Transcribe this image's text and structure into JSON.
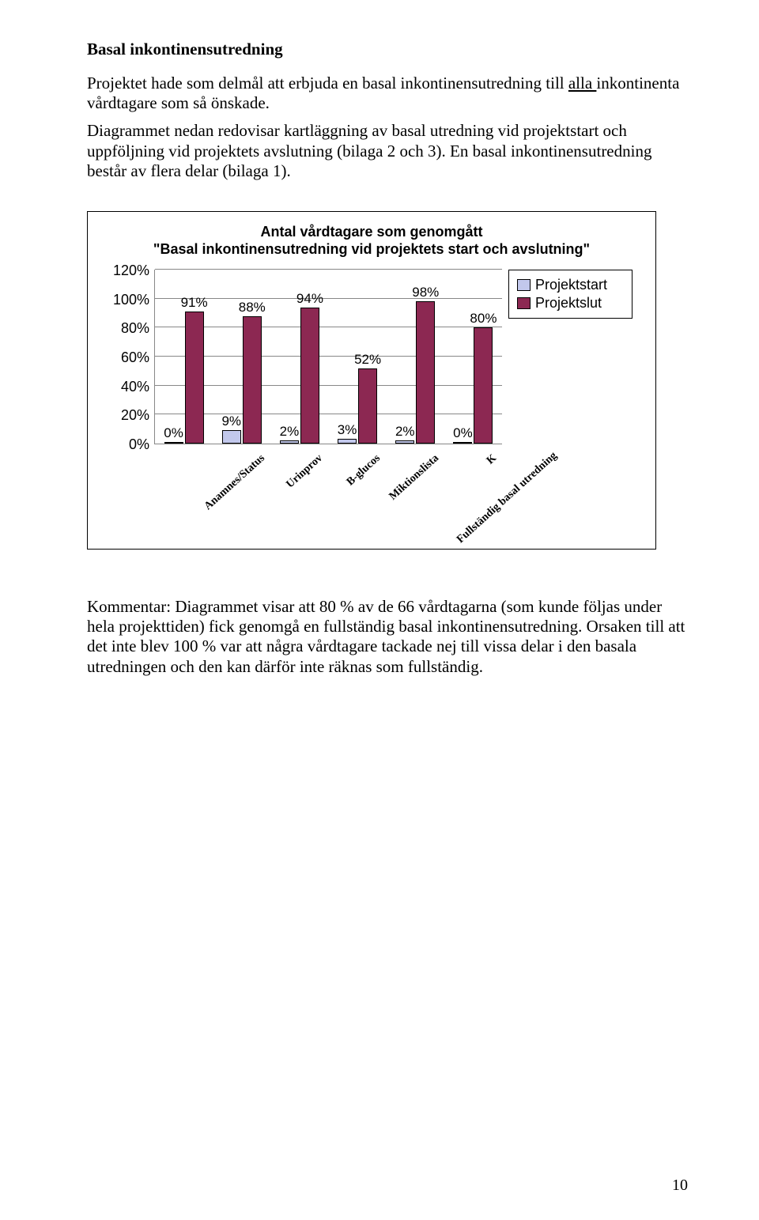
{
  "heading": "Basal inkontinensutredning",
  "para1_a": "Projektet hade som delmål att erbjuda en basal inkontinensutredning till ",
  "para1_u": "alla ",
  "para1_b": "inkontinenta vårdtagare som så önskade.",
  "para2": "Diagrammet nedan redovisar kartläggning av basal utredning vid projektstart och uppföljning vid projektets avslutning (bilaga 2 och 3). En basal inkontinensutredning består av flera delar (bilaga 1).",
  "chart": {
    "title_line1": "Antal vårdtagare som genomgått",
    "title_line2": "\"Basal inkontinensutredning vid projektets start och avslutning\"",
    "ymax": 120,
    "ytick_step": 20,
    "ytick_labels": [
      "120%",
      "100%",
      "80%",
      "60%",
      "40%",
      "20%",
      "0%"
    ],
    "categories": [
      "Anamnes/Status",
      "Urinprov",
      "B-glucos",
      "Miktionslista",
      "K",
      "Fullständig basal utredning"
    ],
    "series": [
      {
        "name": "Projektstart",
        "color": "#c2c8ec",
        "values": [
          0,
          9,
          2,
          3,
          2,
          0
        ]
      },
      {
        "name": "Projektslut",
        "color": "#8c2852",
        "values": [
          91,
          88,
          94,
          52,
          98,
          80
        ]
      }
    ],
    "value_labels": [
      [
        "0%",
        "91%"
      ],
      [
        "9%",
        "88%"
      ],
      [
        "2%",
        "94%"
      ],
      [
        "3%",
        "52%"
      ],
      [
        "2%",
        "98%"
      ],
      [
        "0%",
        "80%"
      ]
    ],
    "bg": "#ffffff",
    "grid_color": "#888888"
  },
  "comment": "Kommentar: Diagrammet visar att 80 % av de 66 vårdtagarna (som kunde följas under hela projekttiden) fick genomgå en fullständig basal inkontinensutredning. Orsaken till att det inte blev 100 % var att några vårdtagare tackade nej till vissa delar i den basala utredningen och den kan därför inte räknas som fullständig.",
  "page_number": "10"
}
